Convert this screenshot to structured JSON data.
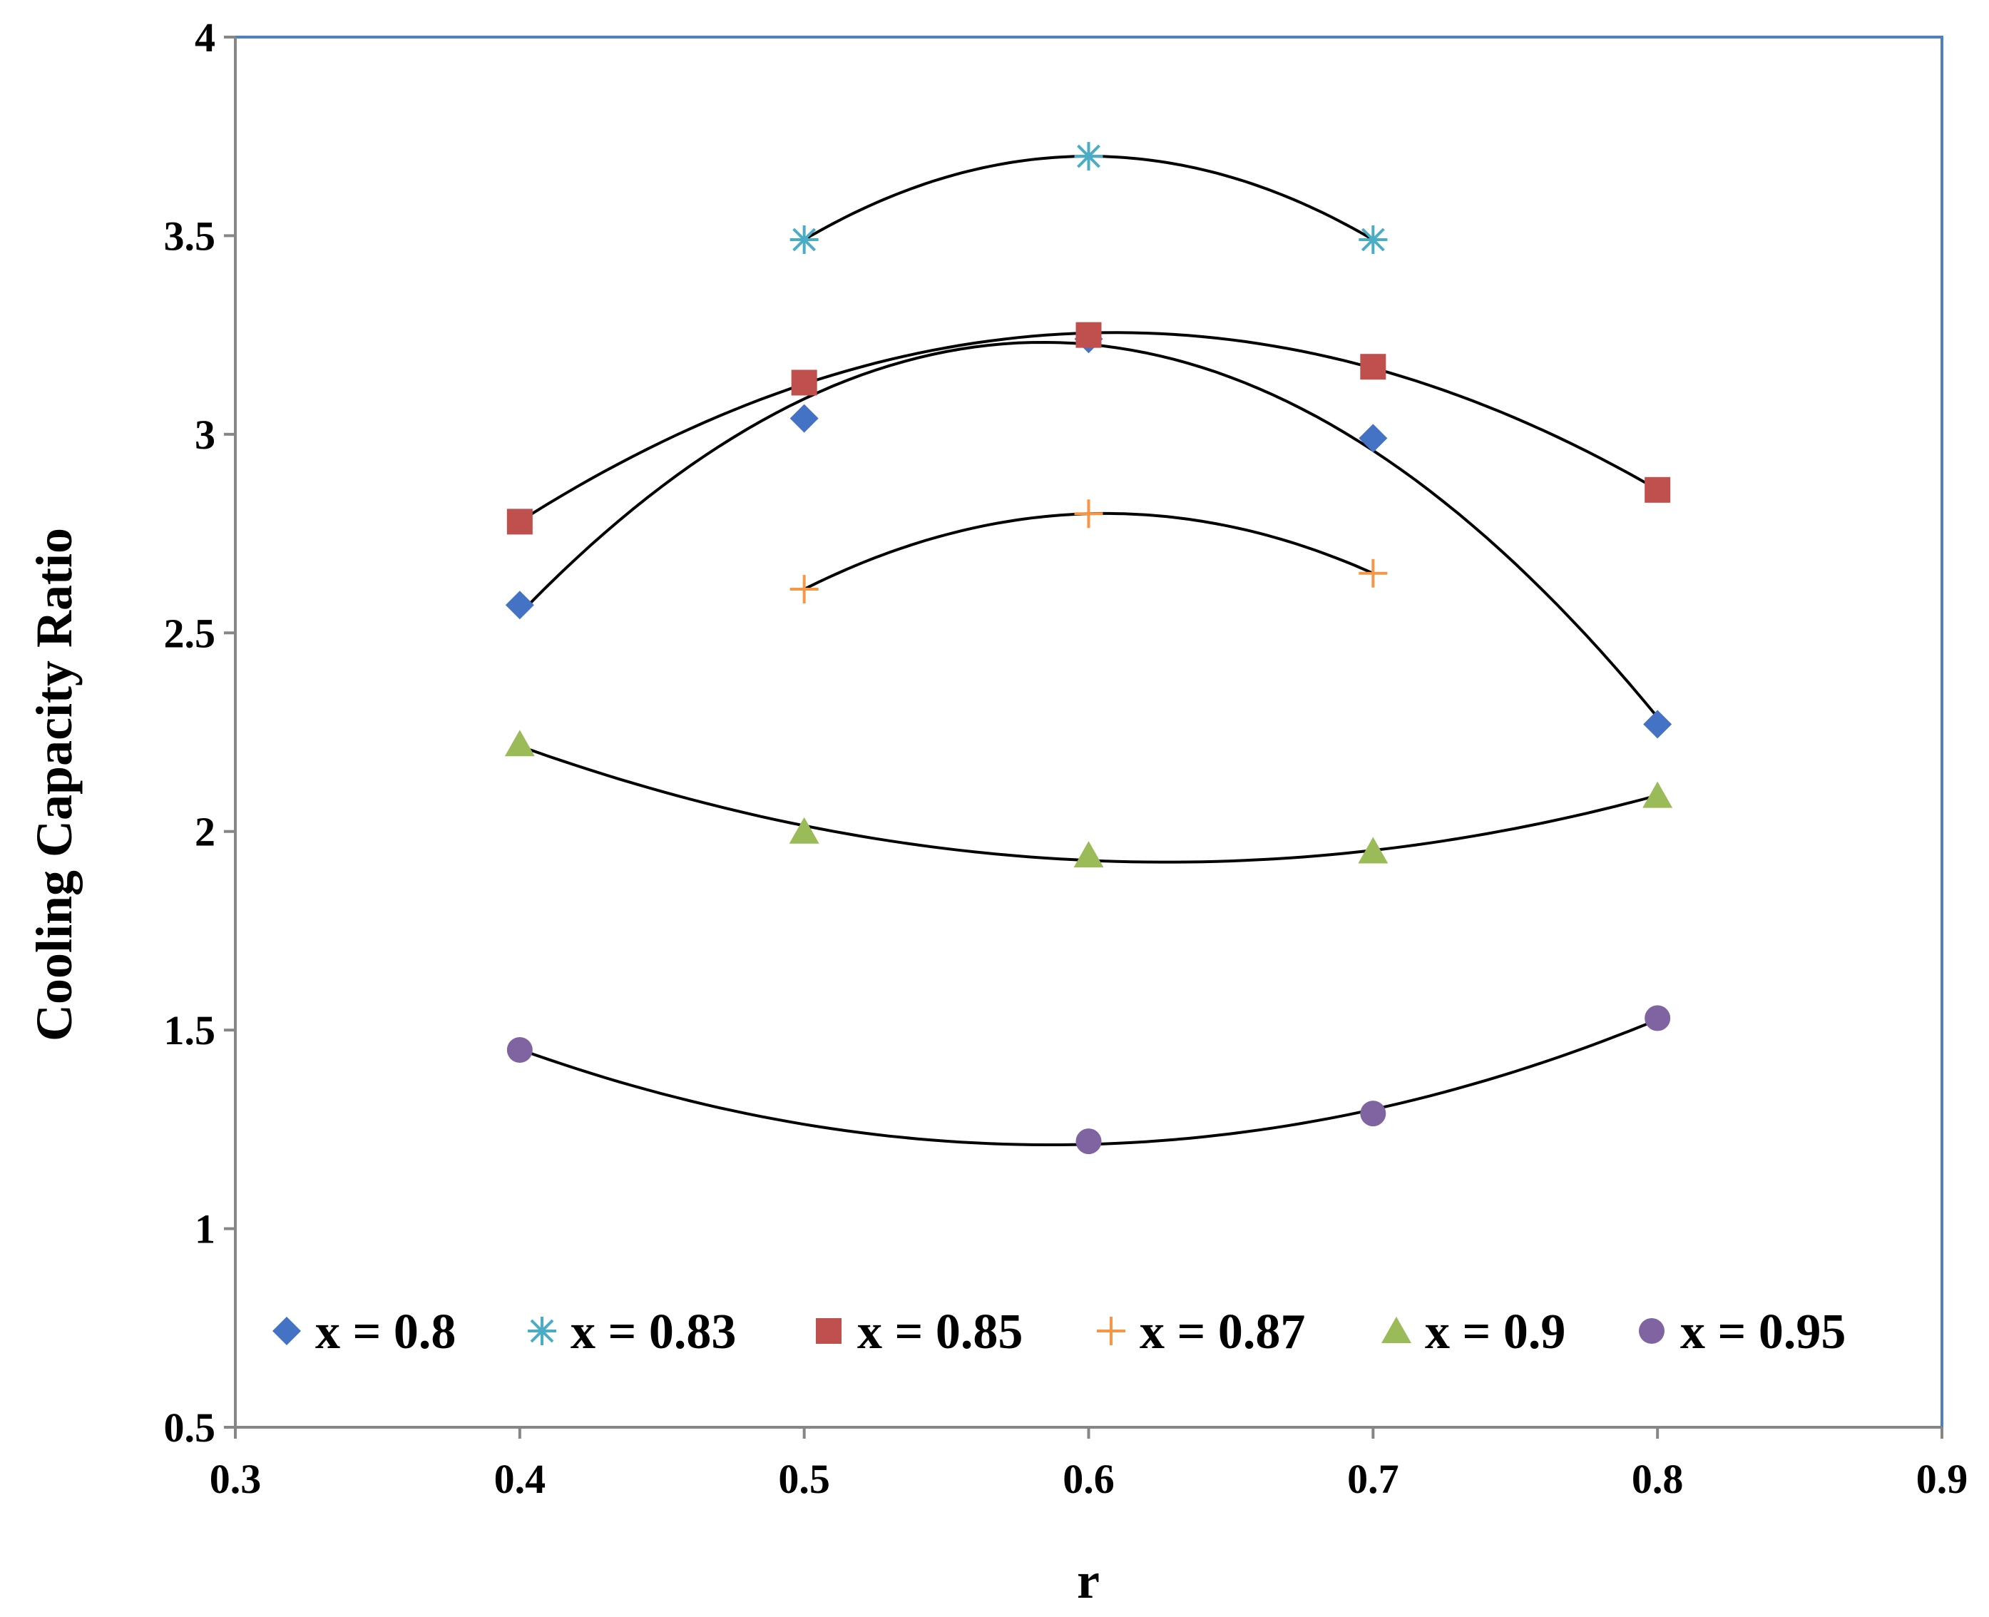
{
  "chart_data": {
    "type": "scatter",
    "title": "",
    "xlabel": "r",
    "ylabel": "Cooling Capacity Ratio",
    "xlim": [
      0.3,
      0.9
    ],
    "ylim": [
      0.5,
      4
    ],
    "xticks": [
      "0.3",
      "0.4",
      "0.5",
      "0.6",
      "0.7",
      "0.8",
      "0.9"
    ],
    "yticks": [
      "0.5",
      "1",
      "1.5",
      "2",
      "2.5",
      "3",
      "3.5",
      "4"
    ],
    "grid": false,
    "legend_position": "bottom",
    "trendlines": "polynomial (order 2)",
    "series": [
      {
        "name": "x = 0.8",
        "marker": "diamond",
        "color": "#4472C4",
        "x": [
          0.4,
          0.5,
          0.6,
          0.7,
          0.8
        ],
        "y": [
          2.57,
          3.04,
          3.24,
          2.99,
          2.27
        ]
      },
      {
        "name": "x = 0.83",
        "marker": "asterisk",
        "color": "#4BACC6",
        "x": [
          0.5,
          0.6,
          0.7
        ],
        "y": [
          3.49,
          3.7,
          3.49
        ]
      },
      {
        "name": "x = 0.85",
        "marker": "square",
        "color": "#C0504D",
        "x": [
          0.4,
          0.5,
          0.6,
          0.7,
          0.8
        ],
        "y": [
          2.78,
          3.13,
          3.25,
          3.17,
          2.86
        ]
      },
      {
        "name": "x = 0.87",
        "marker": "plus",
        "color": "#F79646",
        "x": [
          0.5,
          0.6,
          0.7
        ],
        "y": [
          2.61,
          2.8,
          2.65
        ]
      },
      {
        "name": "x = 0.9",
        "marker": "triangle",
        "color": "#9BBB59",
        "x": [
          0.4,
          0.5,
          0.6,
          0.7,
          0.8
        ],
        "y": [
          2.22,
          2.0,
          1.94,
          1.95,
          2.09
        ]
      },
      {
        "name": "x = 0.95",
        "marker": "circle",
        "color": "#8064A2",
        "x": [
          0.4,
          0.5,
          0.6,
          0.7,
          0.8
        ],
        "y": [
          1.45,
          null,
          1.22,
          1.29,
          1.53
        ]
      }
    ]
  }
}
